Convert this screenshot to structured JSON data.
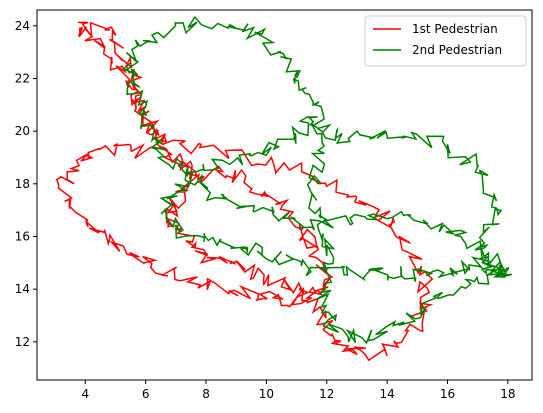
{
  "chart_data": {
    "type": "line",
    "title": "",
    "xlabel": "",
    "ylabel": "",
    "xlim": [
      2.4,
      18.8
    ],
    "ylim": [
      10.55,
      24.6
    ],
    "xticks": [
      4,
      6,
      8,
      10,
      12,
      14,
      16,
      18
    ],
    "yticks": [
      12,
      14,
      16,
      18,
      20,
      22,
      24
    ],
    "grid": false,
    "legend": "top-right",
    "series": [
      {
        "name": "1st Pedestrian",
        "color": "#ff0000",
        "anchors": [
          [
            3.9,
            23.9
          ],
          [
            4.8,
            23.8
          ],
          [
            5.2,
            23.0
          ],
          [
            5.6,
            22.2
          ],
          [
            5.7,
            21.4
          ],
          [
            5.9,
            20.6
          ],
          [
            6.3,
            20.0
          ],
          [
            6.6,
            19.6
          ],
          [
            7.8,
            19.3
          ],
          [
            9.5,
            18.9
          ],
          [
            11.0,
            18.6
          ],
          [
            12.2,
            18.0
          ],
          [
            13.2,
            17.3
          ],
          [
            14.1,
            16.6
          ],
          [
            14.7,
            15.6
          ],
          [
            15.2,
            14.6
          ],
          [
            15.3,
            13.6
          ],
          [
            15.0,
            12.8
          ],
          [
            14.4,
            12.0
          ],
          [
            13.6,
            11.5
          ],
          [
            12.8,
            11.7
          ],
          [
            12.2,
            12.2
          ],
          [
            11.8,
            12.9
          ],
          [
            11.5,
            13.6
          ],
          [
            11.0,
            14.1
          ],
          [
            10.2,
            14.3
          ],
          [
            9.4,
            14.7
          ],
          [
            8.7,
            15.1
          ],
          [
            7.9,
            15.3
          ],
          [
            7.5,
            15.9
          ],
          [
            7.0,
            16.4
          ],
          [
            6.9,
            17.0
          ],
          [
            7.1,
            17.6
          ],
          [
            7.6,
            18.2
          ],
          [
            8.4,
            18.5
          ],
          [
            9.2,
            18.2
          ],
          [
            10.0,
            17.6
          ],
          [
            10.7,
            16.9
          ],
          [
            11.2,
            16.2
          ],
          [
            11.6,
            15.5
          ],
          [
            11.9,
            14.6
          ],
          [
            11.8,
            13.9
          ],
          [
            11.2,
            13.6
          ],
          [
            10.4,
            13.6
          ],
          [
            9.6,
            13.8
          ],
          [
            8.7,
            14.0
          ],
          [
            7.8,
            14.3
          ],
          [
            6.8,
            14.7
          ],
          [
            5.9,
            15.1
          ],
          [
            5.0,
            15.7
          ],
          [
            4.2,
            16.3
          ],
          [
            3.5,
            17.2
          ],
          [
            3.3,
            18.0
          ],
          [
            3.6,
            18.7
          ],
          [
            4.2,
            19.2
          ],
          [
            5.2,
            19.3
          ],
          [
            6.2,
            19.2
          ],
          [
            7.2,
            18.8
          ],
          [
            7.6,
            18.2
          ],
          [
            6.6,
            19.6
          ],
          [
            6.0,
            20.4
          ],
          [
            5.7,
            21.2
          ],
          [
            5.3,
            22.2
          ],
          [
            4.7,
            23.0
          ],
          [
            4.1,
            23.7
          ],
          [
            3.9,
            23.9
          ]
        ],
        "jitter": 0.28,
        "steps": 7,
        "seed": 7
      },
      {
        "name": "2nd Pedestrian",
        "color": "#008000",
        "anchors": [
          [
            5.5,
            22.6
          ],
          [
            5.9,
            23.3
          ],
          [
            6.8,
            23.8
          ],
          [
            8.0,
            24.1
          ],
          [
            9.1,
            24.0
          ],
          [
            9.8,
            23.6
          ],
          [
            10.4,
            23.0
          ],
          [
            10.9,
            22.3
          ],
          [
            11.3,
            21.6
          ],
          [
            11.6,
            20.9
          ],
          [
            11.8,
            20.1
          ],
          [
            12.2,
            19.8
          ],
          [
            13.2,
            19.8
          ],
          [
            14.4,
            19.8
          ],
          [
            15.5,
            19.6
          ],
          [
            16.5,
            19.1
          ],
          [
            17.2,
            18.4
          ],
          [
            17.5,
            17.4
          ],
          [
            17.5,
            16.5
          ],
          [
            17.1,
            15.6
          ],
          [
            17.6,
            15.0
          ],
          [
            17.9,
            14.6
          ],
          [
            17.1,
            14.4
          ],
          [
            16.2,
            14.0
          ],
          [
            15.3,
            13.4
          ],
          [
            14.6,
            12.7
          ],
          [
            13.6,
            12.3
          ],
          [
            12.7,
            12.1
          ],
          [
            12.1,
            12.7
          ],
          [
            11.9,
            13.6
          ],
          [
            12.0,
            14.4
          ],
          [
            12.2,
            15.3
          ],
          [
            12.0,
            16.1
          ],
          [
            11.6,
            17.0
          ],
          [
            11.5,
            17.9
          ],
          [
            11.7,
            18.8
          ],
          [
            11.9,
            19.7
          ],
          [
            11.6,
            20.4
          ],
          [
            10.9,
            19.8
          ],
          [
            10.1,
            19.3
          ],
          [
            9.2,
            19.0
          ],
          [
            8.2,
            18.7
          ],
          [
            7.4,
            18.2
          ],
          [
            6.8,
            17.5
          ],
          [
            6.7,
            16.8
          ],
          [
            7.1,
            16.2
          ],
          [
            7.9,
            15.9
          ],
          [
            8.8,
            15.8
          ],
          [
            9.6,
            15.5
          ],
          [
            10.4,
            15.2
          ],
          [
            11.2,
            14.9
          ],
          [
            12.0,
            14.6
          ],
          [
            12.8,
            14.6
          ],
          [
            13.6,
            14.6
          ],
          [
            14.4,
            14.6
          ],
          [
            15.2,
            14.5
          ],
          [
            15.9,
            14.6
          ],
          [
            16.6,
            14.8
          ],
          [
            17.2,
            15.0
          ],
          [
            17.9,
            14.7
          ],
          [
            17.3,
            14.8
          ],
          [
            16.9,
            15.7
          ],
          [
            16.0,
            16.3
          ],
          [
            15.0,
            16.7
          ],
          [
            13.9,
            16.9
          ],
          [
            12.8,
            16.6
          ],
          [
            11.8,
            16.4
          ],
          [
            10.8,
            16.7
          ],
          [
            9.9,
            17.0
          ],
          [
            9.0,
            17.2
          ],
          [
            8.2,
            17.6
          ],
          [
            7.5,
            18.3
          ],
          [
            6.9,
            18.7
          ],
          [
            6.4,
            19.3
          ],
          [
            6.0,
            20.1
          ],
          [
            5.8,
            20.9
          ],
          [
            5.6,
            21.7
          ],
          [
            5.5,
            22.6
          ]
        ],
        "jitter": 0.28,
        "steps": 7,
        "seed": 19
      }
    ]
  }
}
